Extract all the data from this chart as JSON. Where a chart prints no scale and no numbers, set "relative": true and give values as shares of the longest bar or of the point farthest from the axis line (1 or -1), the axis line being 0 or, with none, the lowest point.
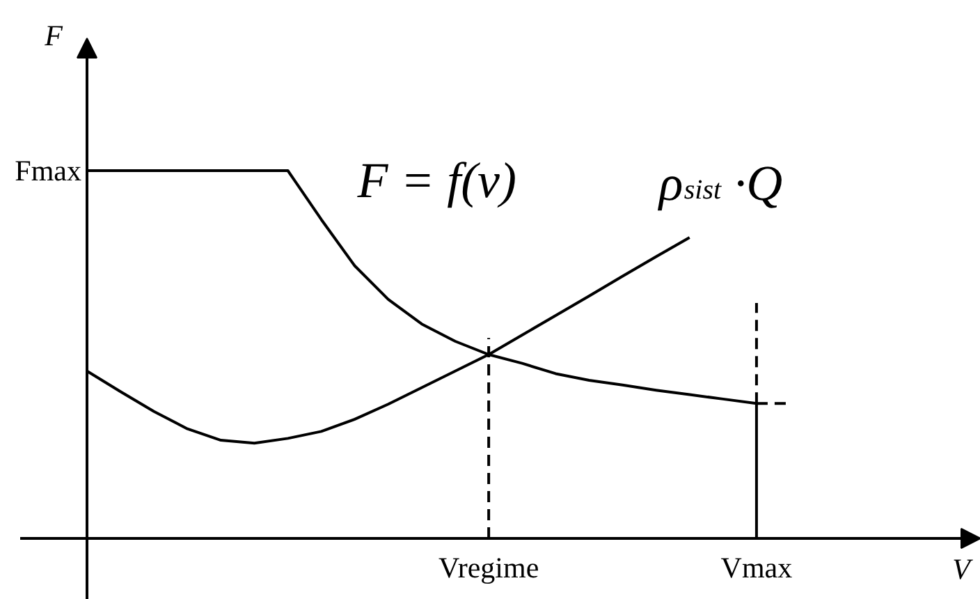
{
  "chart_data": {
    "type": "line",
    "relative": true,
    "xlabel": "V",
    "ylabel": "F",
    "categories": [
      null,
      null,
      null,
      null,
      null,
      null,
      null,
      null,
      null,
      null,
      null,
      null,
      "Vregime",
      null,
      null,
      null,
      null,
      null,
      null,
      null,
      "Vmax",
      null
    ],
    "annotations": [
      "Fmax"
    ],
    "series": [
      {
        "name": "F = f(v)",
        "color": "#000000",
        "values": [
          1,
          1,
          1,
          1,
          1,
          1,
          1,
          0.867,
          0.741,
          0.65,
          0.583,
          0.536,
          0.5,
          0.476,
          0.448,
          0.43,
          0.417,
          0.403,
          0.391,
          0.379,
          0.367,
          null
        ]
      },
      {
        "name": "ρ$_{sist}$ ·Q",
        "color": "#000000",
        "values": [
          0.455,
          0.399,
          0.345,
          0.298,
          0.267,
          0.259,
          0.272,
          0.291,
          0.324,
          0.365,
          0.41,
          0.455,
          0.5,
          0.553,
          0.606,
          0.659,
          0.713,
          0.766,
          0.818,
          null,
          null,
          null
        ]
      },
      {
        "color": "#000000",
        "x": [
          "Vmax",
          "Vmax"
        ],
        "values": [
          0.367,
          0
        ]
      },
      {
        "color": "#000000",
        "line_style": "dashed",
        "x": [
          "Vregime",
          "Vregime"
        ],
        "values": [
          0,
          0.545
        ]
      },
      {
        "color": "#000000",
        "line_style": "dashed",
        "x": [
          "Vmax",
          "Vmax"
        ],
        "values": [
          0.367,
          0.64
        ]
      },
      {
        "color": "#000000",
        "line_style": "dashed",
        "values": [
          null,
          null,
          null,
          null,
          null,
          null,
          null,
          null,
          null,
          null,
          null,
          null,
          null,
          null,
          null,
          null,
          null,
          null,
          null,
          null,
          0.367,
          0.367
        ]
      }
    ]
  }
}
